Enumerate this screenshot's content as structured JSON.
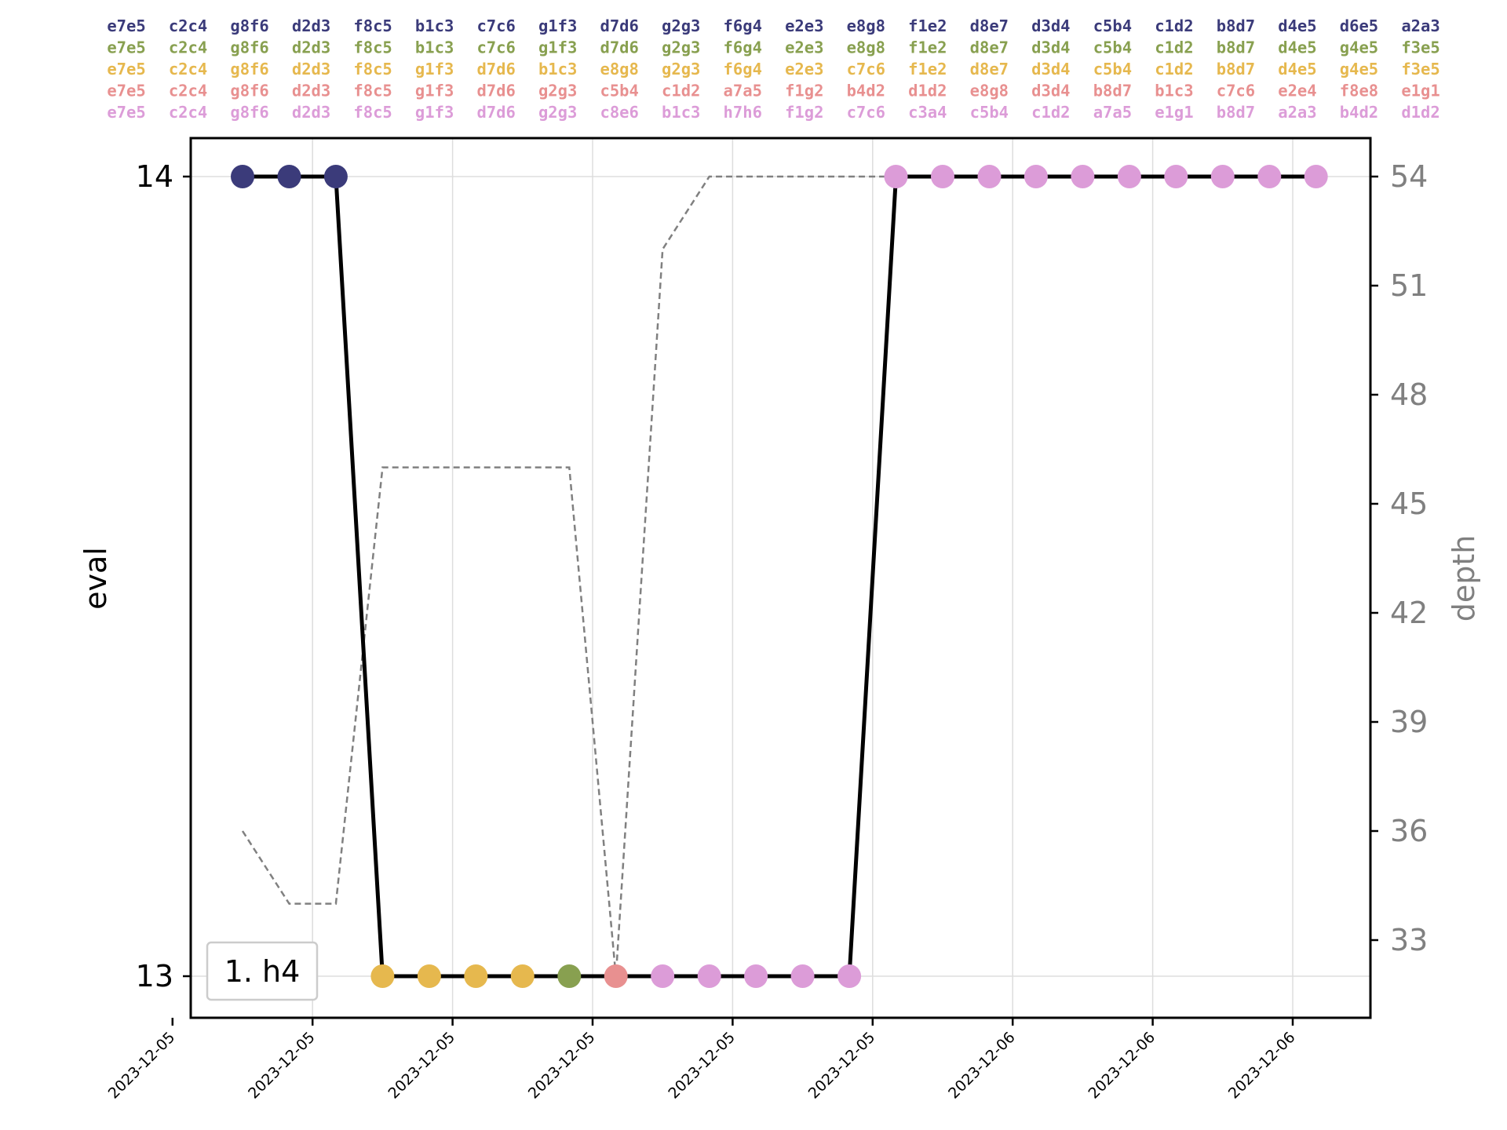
{
  "chart_data": {
    "type": "line",
    "xlabel": "",
    "ylabel": "eval",
    "y2label": "depth",
    "x_tick_labels": [
      "2023-12-05",
      "2023-12-05",
      "2023-12-05",
      "2023-12-05",
      "2023-12-05",
      "2023-12-05",
      "2023-12-06",
      "2023-12-06",
      "2023-12-06"
    ],
    "x_tick_index": [
      -1,
      1,
      3,
      5,
      7,
      9,
      11,
      13,
      15
    ],
    "xlim_index": [
      -1.05,
      15.8
    ],
    "ylim": [
      12.95,
      14.05
    ],
    "y_ticks": [
      13,
      14
    ],
    "y2lim": [
      30.9,
      55.1
    ],
    "y2_ticks": [
      33,
      36,
      39,
      42,
      45,
      48,
      51,
      54
    ],
    "grid": true,
    "legend_text": "1. h4",
    "legend_position": "lower-left",
    "eval_line_color": "#000000",
    "depth_line_color": "#808080",
    "points": [
      {
        "i": 0,
        "eval": 14,
        "depth": 36,
        "pv": 0
      },
      {
        "i": 0.667,
        "eval": 14,
        "depth": 34,
        "pv": 0
      },
      {
        "i": 1.333,
        "eval": 14,
        "depth": 34,
        "pv": 0
      },
      {
        "i": 2,
        "eval": 13,
        "depth": 46,
        "pv": 2
      },
      {
        "i": 2.667,
        "eval": 13,
        "depth": 46,
        "pv": 2
      },
      {
        "i": 3.333,
        "eval": 13,
        "depth": 46,
        "pv": 2
      },
      {
        "i": 4,
        "eval": 13,
        "depth": 46,
        "pv": 2
      },
      {
        "i": 4.667,
        "eval": 13,
        "depth": 46,
        "pv": 1
      },
      {
        "i": 5.333,
        "eval": 13,
        "depth": 32,
        "pv": 3
      },
      {
        "i": 6,
        "eval": 13,
        "depth": 52,
        "pv": 4
      },
      {
        "i": 6.667,
        "eval": 13,
        "depth": 54,
        "pv": 4
      },
      {
        "i": 7.333,
        "eval": 13,
        "depth": 54,
        "pv": 4
      },
      {
        "i": 8,
        "eval": 13,
        "depth": 54,
        "pv": 4
      },
      {
        "i": 8.667,
        "eval": 13,
        "depth": 54,
        "pv": 4
      },
      {
        "i": 9.333,
        "eval": 14,
        "depth": 54,
        "pv": 4
      },
      {
        "i": 10,
        "eval": 14,
        "depth": 54,
        "pv": 4
      },
      {
        "i": 10.667,
        "eval": 14,
        "depth": 54,
        "pv": 4
      },
      {
        "i": 11.333,
        "eval": 14,
        "depth": 54,
        "pv": 4
      },
      {
        "i": 12,
        "eval": 14,
        "depth": 54,
        "pv": 4
      },
      {
        "i": 12.667,
        "eval": 14,
        "depth": 54,
        "pv": 4
      },
      {
        "i": 13.333,
        "eval": 14,
        "depth": 54,
        "pv": 4
      },
      {
        "i": 14,
        "eval": 14,
        "depth": 54,
        "pv": 4
      },
      {
        "i": 14.667,
        "eval": 14,
        "depth": 54,
        "pv": 4
      },
      {
        "i": 15.333,
        "eval": 14,
        "depth": 54,
        "pv": 4
      }
    ],
    "pv_lines": [
      {
        "color": "#3b3b7a",
        "moves": [
          "e7e5",
          "c2c4",
          "g8f6",
          "d2d3",
          "f8c5",
          "b1c3",
          "c7c6",
          "g1f3",
          "d7d6",
          "g2g3",
          "f6g4",
          "e2e3",
          "e8g8",
          "f1e2",
          "d8e7",
          "d3d4",
          "c5b4",
          "c1d2",
          "b8d7",
          "d4e5",
          "d6e5",
          "a2a3"
        ]
      },
      {
        "color": "#88a050",
        "moves": [
          "e7e5",
          "c2c4",
          "g8f6",
          "d2d3",
          "f8c5",
          "b1c3",
          "c7c6",
          "g1f3",
          "d7d6",
          "g2g3",
          "f6g4",
          "e2e3",
          "e8g8",
          "f1e2",
          "d8e7",
          "d3d4",
          "c5b4",
          "c1d2",
          "b8d7",
          "d4e5",
          "g4e5",
          "f3e5"
        ]
      },
      {
        "color": "#e6b84e",
        "moves": [
          "e7e5",
          "c2c4",
          "g8f6",
          "d2d3",
          "f8c5",
          "g1f3",
          "d7d6",
          "b1c3",
          "e8g8",
          "g2g3",
          "f6g4",
          "e2e3",
          "c7c6",
          "f1e2",
          "d8e7",
          "d3d4",
          "c5b4",
          "c1d2",
          "b8d7",
          "d4e5",
          "g4e5",
          "f3e5"
        ]
      },
      {
        "color": "#e89090",
        "moves": [
          "e7e5",
          "c2c4",
          "g8f6",
          "d2d3",
          "f8c5",
          "g1f3",
          "d7d6",
          "g2g3",
          "c5b4",
          "c1d2",
          "a7a5",
          "f1g2",
          "b4d2",
          "d1d2",
          "e8g8",
          "d3d4",
          "b8d7",
          "b1c3",
          "c7c6",
          "e2e4",
          "f8e8",
          "e1g1"
        ]
      },
      {
        "color": "#dc9cd8",
        "moves": [
          "e7e5",
          "c2c4",
          "g8f6",
          "d2d3",
          "f8c5",
          "g1f3",
          "d7d6",
          "g2g3",
          "c8e6",
          "b1c3",
          "h7h6",
          "f1g2",
          "c7c6",
          "c3a4",
          "c5b4",
          "c1d2",
          "a7a5",
          "e1g1",
          "b8d7",
          "a2a3",
          "b4d2",
          "d1d2"
        ]
      }
    ]
  }
}
